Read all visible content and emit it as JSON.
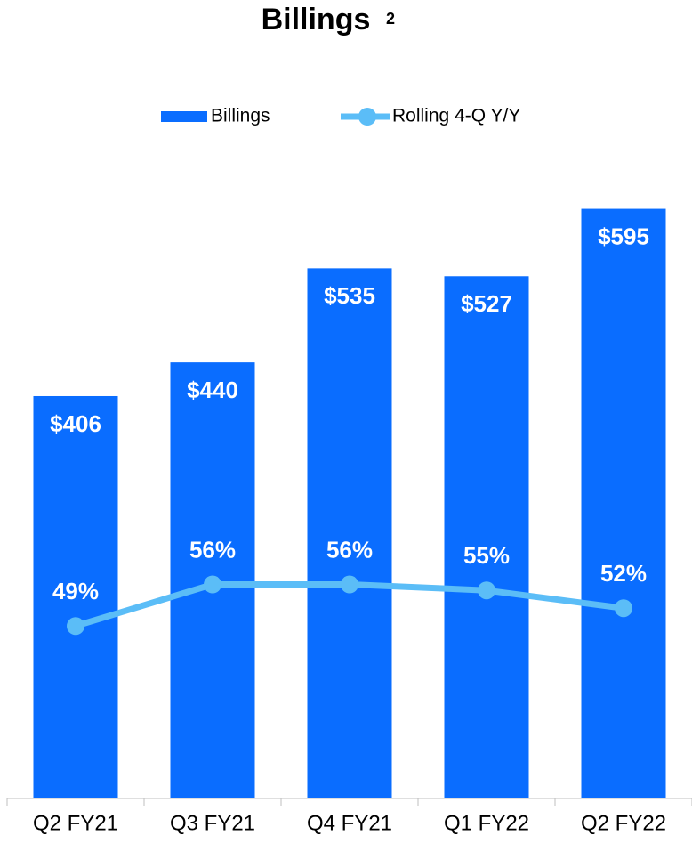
{
  "chart_data": {
    "type": "bar",
    "title": "Billings",
    "title_superscript": "2",
    "categories": [
      "Q2 FY21",
      "Q3 FY21",
      "Q4 FY21",
      "Q1 FY22",
      "Q2 FY22"
    ],
    "ylim": [
      0,
      600
    ],
    "y2lim": [
      20,
      120
    ],
    "legend": "top",
    "series": [
      {
        "name": "Billings",
        "type": "bar",
        "color": "#0A6DFF",
        "values": [
          406,
          440,
          535,
          527,
          595
        ],
        "value_labels": [
          "$406",
          "$440",
          "$535",
          "$527",
          "$595"
        ]
      },
      {
        "name": "Rolling 4-Q Y/Y",
        "type": "line",
        "axis": "y2",
        "color": "#5BBDF7",
        "values": [
          49,
          56,
          56,
          55,
          52
        ],
        "value_labels": [
          "49%",
          "56%",
          "56%",
          "55%",
          "52%"
        ]
      }
    ]
  }
}
